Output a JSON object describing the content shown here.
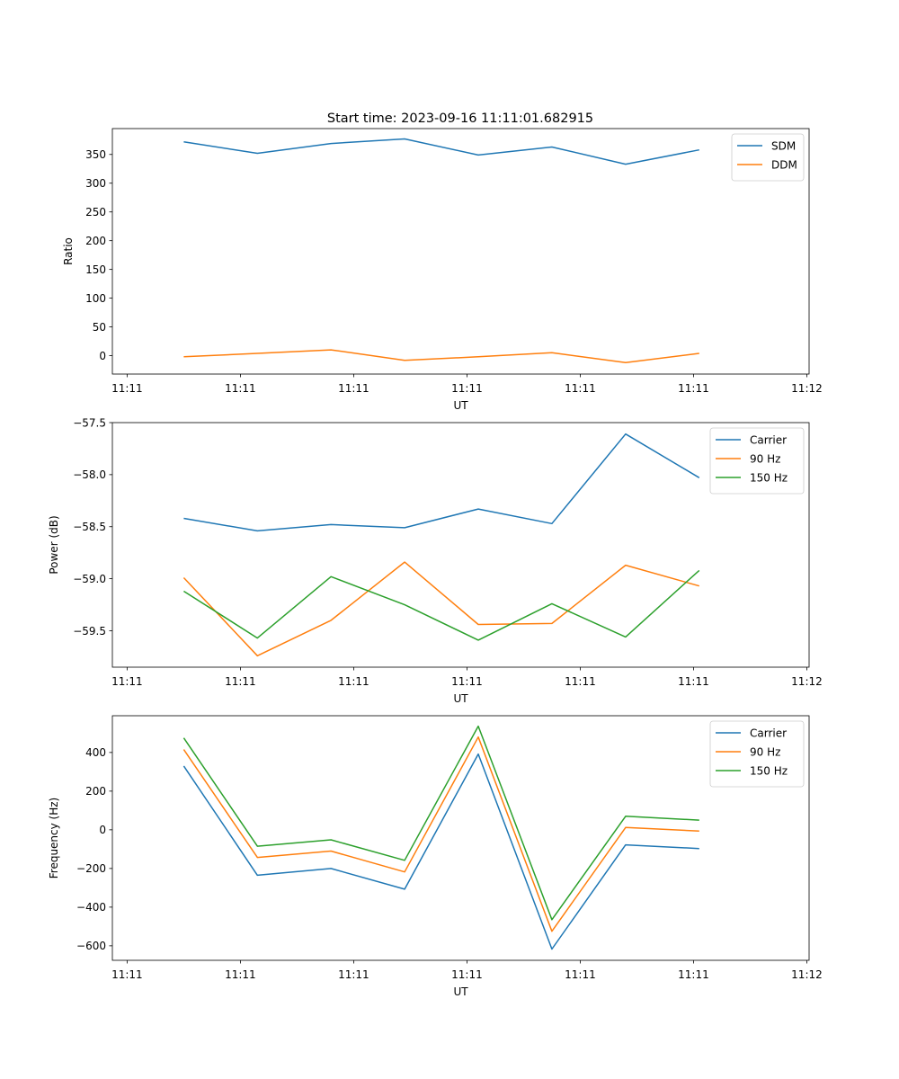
{
  "figure": {
    "title": "Start time: 2023-09-16 11:11:01.682915"
  },
  "chart_data": [
    {
      "type": "line",
      "xlabel": "UT",
      "ylabel": "Ratio",
      "x_ticks": [
        "11:11",
        "11:11",
        "11:11",
        "11:11",
        "11:11",
        "11:11",
        "11:12"
      ],
      "xlim": [
        -0.13,
        6.02
      ],
      "ylim": [
        -32,
        395
      ],
      "y_ticks": [
        0,
        50,
        100,
        150,
        200,
        250,
        300,
        350
      ],
      "x": [
        0.5,
        1.15,
        1.8,
        2.45,
        3.1,
        3.75,
        4.4,
        5.05
      ],
      "series": [
        {
          "name": "SDM",
          "color": "#1f77b4",
          "values": [
            372,
            352,
            369,
            377,
            349,
            363,
            333,
            358
          ]
        },
        {
          "name": "DDM",
          "color": "#ff7f0e",
          "values": [
            -2,
            4,
            10,
            -8,
            -2,
            5,
            -12,
            4
          ]
        }
      ],
      "legend": "top-right"
    },
    {
      "type": "line",
      "xlabel": "UT",
      "ylabel": "Power (dB)",
      "x_ticks": [
        "11:11",
        "11:11",
        "11:11",
        "11:11",
        "11:11",
        "11:11",
        "11:12"
      ],
      "xlim": [
        -0.13,
        6.02
      ],
      "ylim": [
        -59.85,
        -57.5
      ],
      "y_ticks": [
        -57.5,
        -58.0,
        -58.5,
        -59.0,
        -59.5
      ],
      "y_tick_labels": [
        "−57.5",
        "−58.0",
        "−58.5",
        "−59.0",
        "−59.5"
      ],
      "x": [
        0.5,
        1.15,
        1.8,
        2.45,
        3.1,
        3.75,
        4.4,
        5.05
      ],
      "series": [
        {
          "name": "Carrier",
          "color": "#1f77b4",
          "values": [
            -58.42,
            -58.54,
            -58.48,
            -58.51,
            -58.33,
            -58.47,
            -57.61,
            -58.03
          ]
        },
        {
          "name": "90 Hz",
          "color": "#ff7f0e",
          "values": [
            -58.99,
            -59.74,
            -59.4,
            -58.84,
            -59.44,
            -59.43,
            -58.87,
            -59.07
          ]
        },
        {
          "name": "150 Hz",
          "color": "#2ca02c",
          "values": [
            -59.12,
            -59.57,
            -58.98,
            -59.25,
            -59.59,
            -59.24,
            -59.56,
            -58.92
          ]
        }
      ],
      "legend": "top-right"
    },
    {
      "type": "line",
      "xlabel": "UT",
      "ylabel": "Frequency (Hz)",
      "x_ticks": [
        "11:11",
        "11:11",
        "11:11",
        "11:11",
        "11:11",
        "11:11",
        "11:12"
      ],
      "xlim": [
        -0.13,
        6.02
      ],
      "ylim": [
        -675,
        590
      ],
      "y_ticks": [
        -600,
        -400,
        -200,
        0,
        200,
        400
      ],
      "y_tick_labels": [
        "−600",
        "−400",
        "−200",
        "0",
        "200",
        "400"
      ],
      "x": [
        0.5,
        1.15,
        1.8,
        2.45,
        3.1,
        3.75,
        4.4,
        5.05
      ],
      "series": [
        {
          "name": "Carrier",
          "color": "#1f77b4",
          "values": [
            330,
            -235,
            -200,
            -307,
            392,
            -617,
            -78,
            -97
          ]
        },
        {
          "name": "90 Hz",
          "color": "#ff7f0e",
          "values": [
            415,
            -143,
            -110,
            -218,
            480,
            -525,
            12,
            -6
          ]
        },
        {
          "name": "150 Hz",
          "color": "#2ca02c",
          "values": [
            475,
            -85,
            -52,
            -158,
            536,
            -465,
            70,
            50
          ]
        }
      ],
      "legend": "top-right"
    }
  ]
}
